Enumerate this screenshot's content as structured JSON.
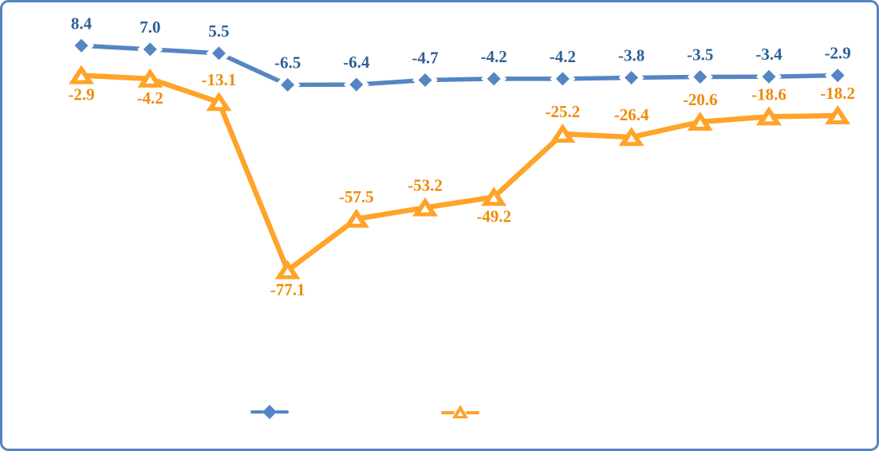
{
  "frame": {
    "border_color": "#5585C2",
    "background_color": "#FFFFFF"
  },
  "chart_data": {
    "type": "line",
    "title": "",
    "xlabel": "",
    "ylabel": "",
    "axes_visible": false,
    "grid": false,
    "point_count": 12,
    "marker_fill": "#FFFFFF",
    "series": [
      {
        "id": "blue-diamond",
        "marker": "diamond",
        "line_color": "#5585C2",
        "label_color": "#2E6096",
        "values": [
          8.4,
          7.0,
          5.5,
          -6.5,
          -6.4,
          -4.7,
          -4.2,
          -4.2,
          -3.8,
          -3.5,
          -3.4,
          -2.9
        ],
        "labels": [
          "8.4",
          "7.0",
          "5.5",
          "-6.5",
          "-6.4",
          "-4.7",
          "-4.2",
          "-4.2",
          "-3.8",
          "-3.5",
          "-3.4",
          "-2.9"
        ],
        "label_placement": [
          "above",
          "above",
          "above",
          "above",
          "above",
          "above",
          "above",
          "above",
          "above",
          "above",
          "above",
          "above"
        ]
      },
      {
        "id": "orange-triangle",
        "marker": "triangle-up",
        "line_color": "#FFA329",
        "label_color": "#EE8A06",
        "values": [
          -2.9,
          -4.2,
          -13.1,
          -77.1,
          -57.5,
          -53.2,
          -49.2,
          -25.2,
          -26.4,
          -20.6,
          -18.6,
          -18.2
        ],
        "labels": [
          "-2.9",
          "-4.2",
          "-13.1",
          "-77.1",
          "-57.5",
          "-53.2",
          "-49.2",
          "-25.2",
          "-26.4",
          "-20.6",
          "-18.6",
          "-18.2"
        ],
        "label_placement": [
          "below",
          "below",
          "above",
          "below",
          "above",
          "above",
          "below",
          "above",
          "above",
          "above",
          "above",
          "above"
        ]
      }
    ],
    "legend": {
      "position": "bottom-center",
      "entries": [
        {
          "series": "blue-diamond",
          "label": ""
        },
        {
          "series": "orange-triangle",
          "label": ""
        }
      ]
    }
  }
}
